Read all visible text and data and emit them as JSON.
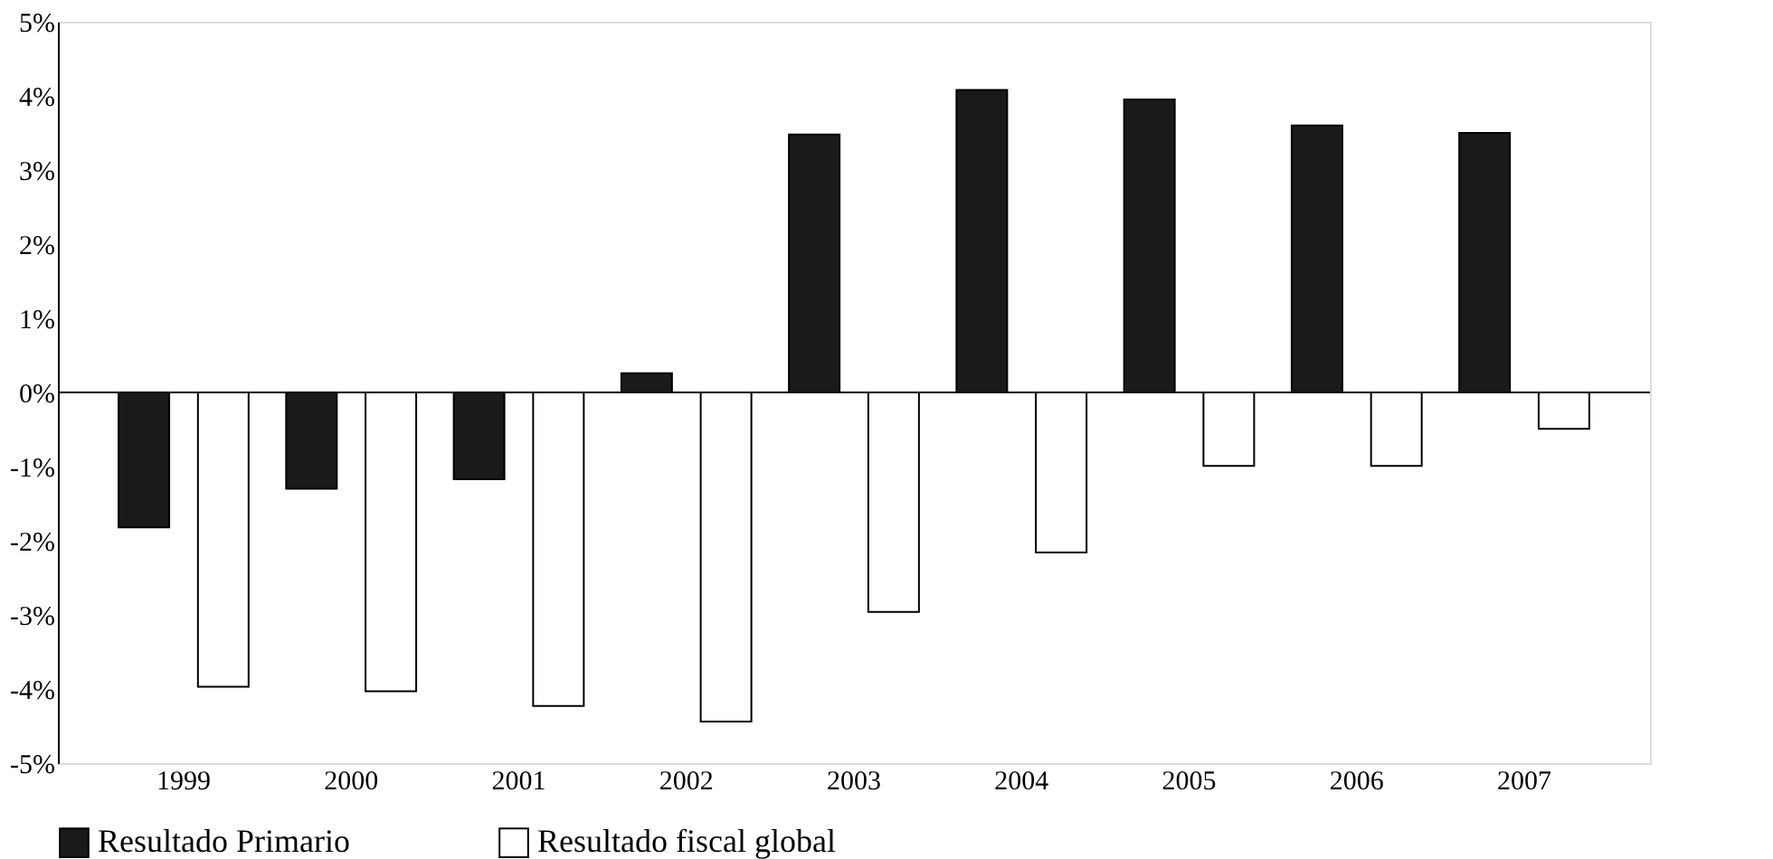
{
  "chart_data": {
    "type": "bar",
    "categories": [
      "1999",
      "2000",
      "2001",
      "2002",
      "2003",
      "2004",
      "2005",
      "2006",
      "2007"
    ],
    "series": [
      {
        "name": "Resultado Primario",
        "color": "#1a1a1a",
        "values": [
          -1.82,
          -1.3,
          -1.17,
          0.26,
          3.48,
          4.08,
          3.95,
          3.6,
          3.5
        ]
      },
      {
        "name": "Resultado fiscal global",
        "color": "#ffffff",
        "values": [
          -3.97,
          -4.03,
          -4.23,
          -4.44,
          -2.96,
          -2.16,
          -0.99,
          -0.99,
          -0.49
        ]
      }
    ],
    "ylim": [
      -5,
      5
    ],
    "yticks": [
      {
        "value": 5,
        "label": "5%"
      },
      {
        "value": 4,
        "label": "4%"
      },
      {
        "value": 3,
        "label": "3%"
      },
      {
        "value": 2,
        "label": "2%"
      },
      {
        "value": 1,
        "label": "1%"
      },
      {
        "value": 0,
        "label": "0%"
      },
      {
        "value": -1,
        "label": "-1%"
      },
      {
        "value": -2,
        "label": "-2%"
      },
      {
        "value": -3,
        "label": "-3%"
      },
      {
        "value": -4,
        "label": "-4%"
      },
      {
        "value": -5,
        "label": "-5%"
      }
    ],
    "ref_lines": [
      {
        "axis": "y",
        "value": 0
      }
    ],
    "grid": false,
    "legend": "bottom"
  }
}
